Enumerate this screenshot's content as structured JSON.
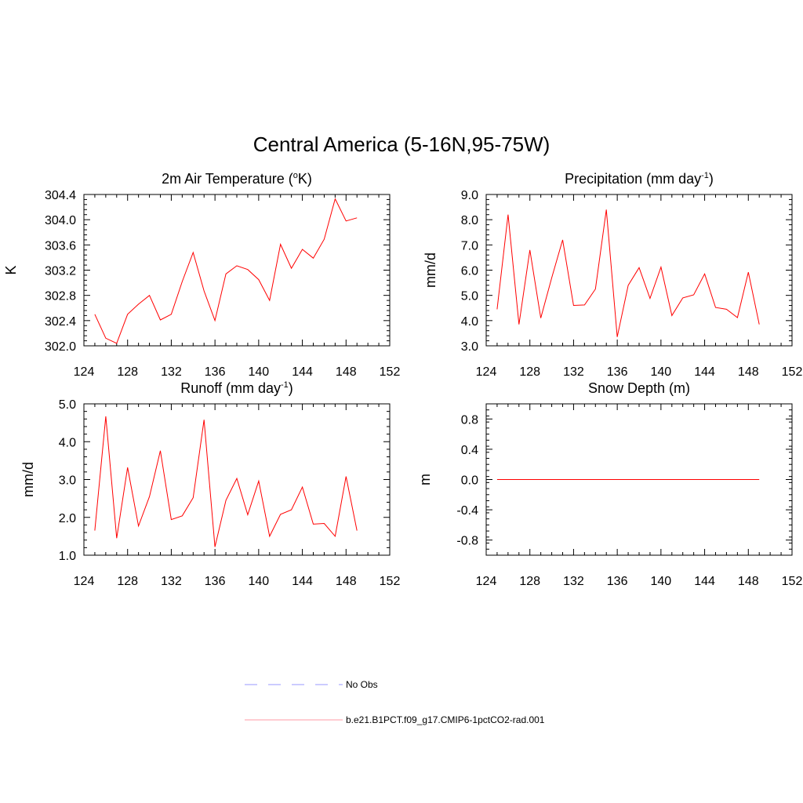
{
  "figure": {
    "title": "Central America (5-16N,95-75W)"
  },
  "legend": [
    {
      "label": "No Obs",
      "color": "#9a9aff",
      "dash": true
    },
    {
      "label": "b.e21.B1PCT.f09_g17.CMIP6-1pctCO2-rad.001",
      "color": "#ff9aa6",
      "dash": false
    }
  ],
  "chart_data": [
    {
      "type": "line",
      "title": "2m Air Temperature (",
      "title_sup": "o",
      "title_after": "K)",
      "ylabel": "K",
      "xlim": [
        124,
        152
      ],
      "ylim": [
        302.0,
        304.4
      ],
      "xticks": [
        124,
        128,
        132,
        136,
        140,
        144,
        148,
        152
      ],
      "yticks": [
        302.0,
        302.4,
        302.8,
        303.2,
        303.6,
        304.0,
        304.4
      ],
      "ytick_labels": [
        "302.0",
        "302.4",
        "302.8",
        "303.2",
        "303.6",
        "304.0",
        "304.4"
      ],
      "x": [
        125,
        126,
        127,
        128,
        129,
        130,
        131,
        132,
        133,
        134,
        135,
        136,
        137,
        138,
        139,
        140,
        141,
        142,
        143,
        144,
        145,
        146,
        147,
        148,
        149
      ],
      "series": [
        {
          "color": "#ff0000",
          "values": [
            302.5,
            302.12,
            302.04,
            302.5,
            302.66,
            302.8,
            302.41,
            302.5,
            303.02,
            303.48,
            302.87,
            302.4,
            303.14,
            303.27,
            303.21,
            303.05,
            302.72,
            303.61,
            303.23,
            303.53,
            303.39,
            303.69,
            304.33,
            303.98,
            304.03
          ]
        }
      ]
    },
    {
      "type": "line",
      "title": "Precipitation (mm day",
      "title_sup": "-1",
      "title_after": ")",
      "ylabel": "mm/d",
      "xlim": [
        124,
        152
      ],
      "ylim": [
        3.0,
        9.0
      ],
      "xticks": [
        124,
        128,
        132,
        136,
        140,
        144,
        148,
        152
      ],
      "yticks": [
        3.0,
        4.0,
        5.0,
        6.0,
        7.0,
        8.0,
        9.0
      ],
      "ytick_labels": [
        "3.0",
        "4.0",
        "5.0",
        "6.0",
        "7.0",
        "8.0",
        "9.0"
      ],
      "x": [
        125,
        126,
        127,
        128,
        129,
        130,
        131,
        132,
        133,
        134,
        135,
        136,
        137,
        138,
        139,
        140,
        141,
        142,
        143,
        144,
        145,
        146,
        147,
        148,
        149
      ],
      "series": [
        {
          "color": "#ff0000",
          "values": [
            4.45,
            8.2,
            3.85,
            6.8,
            4.1,
            5.7,
            7.2,
            4.6,
            4.62,
            5.25,
            8.4,
            3.35,
            5.4,
            6.1,
            4.88,
            6.12,
            4.2,
            4.9,
            5.02,
            5.85,
            4.52,
            4.45,
            4.12,
            5.92,
            3.85
          ]
        }
      ]
    },
    {
      "type": "line",
      "title": "Runoff (mm day",
      "title_sup": "-1",
      "title_after": ")",
      "ylabel": "mm/d",
      "xlim": [
        124,
        152
      ],
      "ylim": [
        1.0,
        5.0
      ],
      "xticks": [
        124,
        128,
        132,
        136,
        140,
        144,
        148,
        152
      ],
      "yticks": [
        1.0,
        2.0,
        3.0,
        4.0,
        5.0
      ],
      "ytick_labels": [
        "1.0",
        "2.0",
        "3.0",
        "4.0",
        "5.0"
      ],
      "x": [
        125,
        126,
        127,
        128,
        129,
        130,
        131,
        132,
        133,
        134,
        135,
        136,
        137,
        138,
        139,
        140,
        141,
        142,
        143,
        144,
        145,
        146,
        147,
        148,
        149
      ],
      "series": [
        {
          "color": "#ff0000",
          "values": [
            1.65,
            4.67,
            1.45,
            3.32,
            1.77,
            2.55,
            3.76,
            1.94,
            2.04,
            2.52,
            4.58,
            1.22,
            2.45,
            3.03,
            2.07,
            2.96,
            1.5,
            2.08,
            2.2,
            2.8,
            1.82,
            1.84,
            1.5,
            3.08,
            1.65
          ]
        }
      ]
    },
    {
      "type": "line",
      "title": "Snow Depth (m)",
      "title_sup": "",
      "title_after": "",
      "ylabel": "m",
      "xlim": [
        124,
        152
      ],
      "ylim": [
        -1.0,
        1.0
      ],
      "xticks": [
        124,
        128,
        132,
        136,
        140,
        144,
        148,
        152
      ],
      "yticks": [
        -0.8,
        -0.4,
        0.0,
        0.4,
        0.8
      ],
      "ytick_labels": [
        "-0.8",
        "-0.4",
        "0.0",
        "0.4",
        "0.8"
      ],
      "x": [
        125,
        126,
        127,
        128,
        129,
        130,
        131,
        132,
        133,
        134,
        135,
        136,
        137,
        138,
        139,
        140,
        141,
        142,
        143,
        144,
        145,
        146,
        147,
        148,
        149
      ],
      "series": [
        {
          "color": "#ff0000",
          "values": [
            0,
            0,
            0,
            0,
            0,
            0,
            0,
            0,
            0,
            0,
            0,
            0,
            0,
            0,
            0,
            0,
            0,
            0,
            0,
            0,
            0,
            0,
            0,
            0,
            0
          ]
        }
      ]
    }
  ]
}
